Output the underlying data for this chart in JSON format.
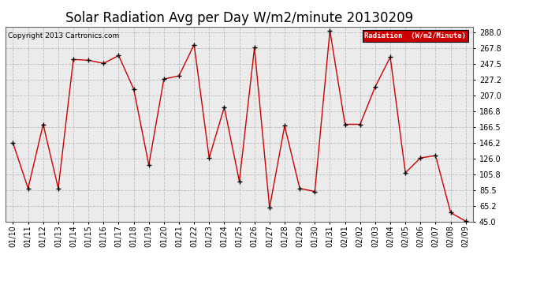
{
  "title": "Solar Radiation Avg per Day W/m2/minute 20130209",
  "copyright": "Copyright 2013 Cartronics.com",
  "legend_label": "Radiation  (W/m2/Minute)",
  "dates": [
    "01/10",
    "01/11",
    "01/12",
    "01/13",
    "01/14",
    "01/15",
    "01/16",
    "01/17",
    "01/18",
    "01/19",
    "01/20",
    "01/21",
    "01/22",
    "01/23",
    "01/24",
    "01/25",
    "01/26",
    "01/27",
    "01/28",
    "01/29",
    "01/30",
    "01/31",
    "02/01",
    "02/02",
    "02/03",
    "02/04",
    "02/05",
    "02/06",
    "02/07",
    "02/08",
    "02/09"
  ],
  "values": [
    146.2,
    88.0,
    170.0,
    88.0,
    253.0,
    252.0,
    248.0,
    258.0,
    215.0,
    118.0,
    228.0,
    232.0,
    272.0,
    127.0,
    192.0,
    97.0,
    268.0,
    63.0,
    168.0,
    88.0,
    84.0,
    290.0,
    170.0,
    170.0,
    218.0,
    256.0,
    108.0,
    127.0,
    130.0,
    57.0,
    46.0
  ],
  "line_color": "#cc0000",
  "marker_color": "#000000",
  "bg_color": "#ffffff",
  "plot_bg_color": "#ebebeb",
  "grid_color": "#bbbbbb",
  "title_fontsize": 12,
  "yticks": [
    45.0,
    65.2,
    85.5,
    105.8,
    126.0,
    146.2,
    166.5,
    186.8,
    207.0,
    227.2,
    247.5,
    267.8,
    288.0
  ],
  "ylim": [
    45.0,
    295.0
  ],
  "legend_bg": "#cc0000",
  "legend_text_color": "#ffffff"
}
